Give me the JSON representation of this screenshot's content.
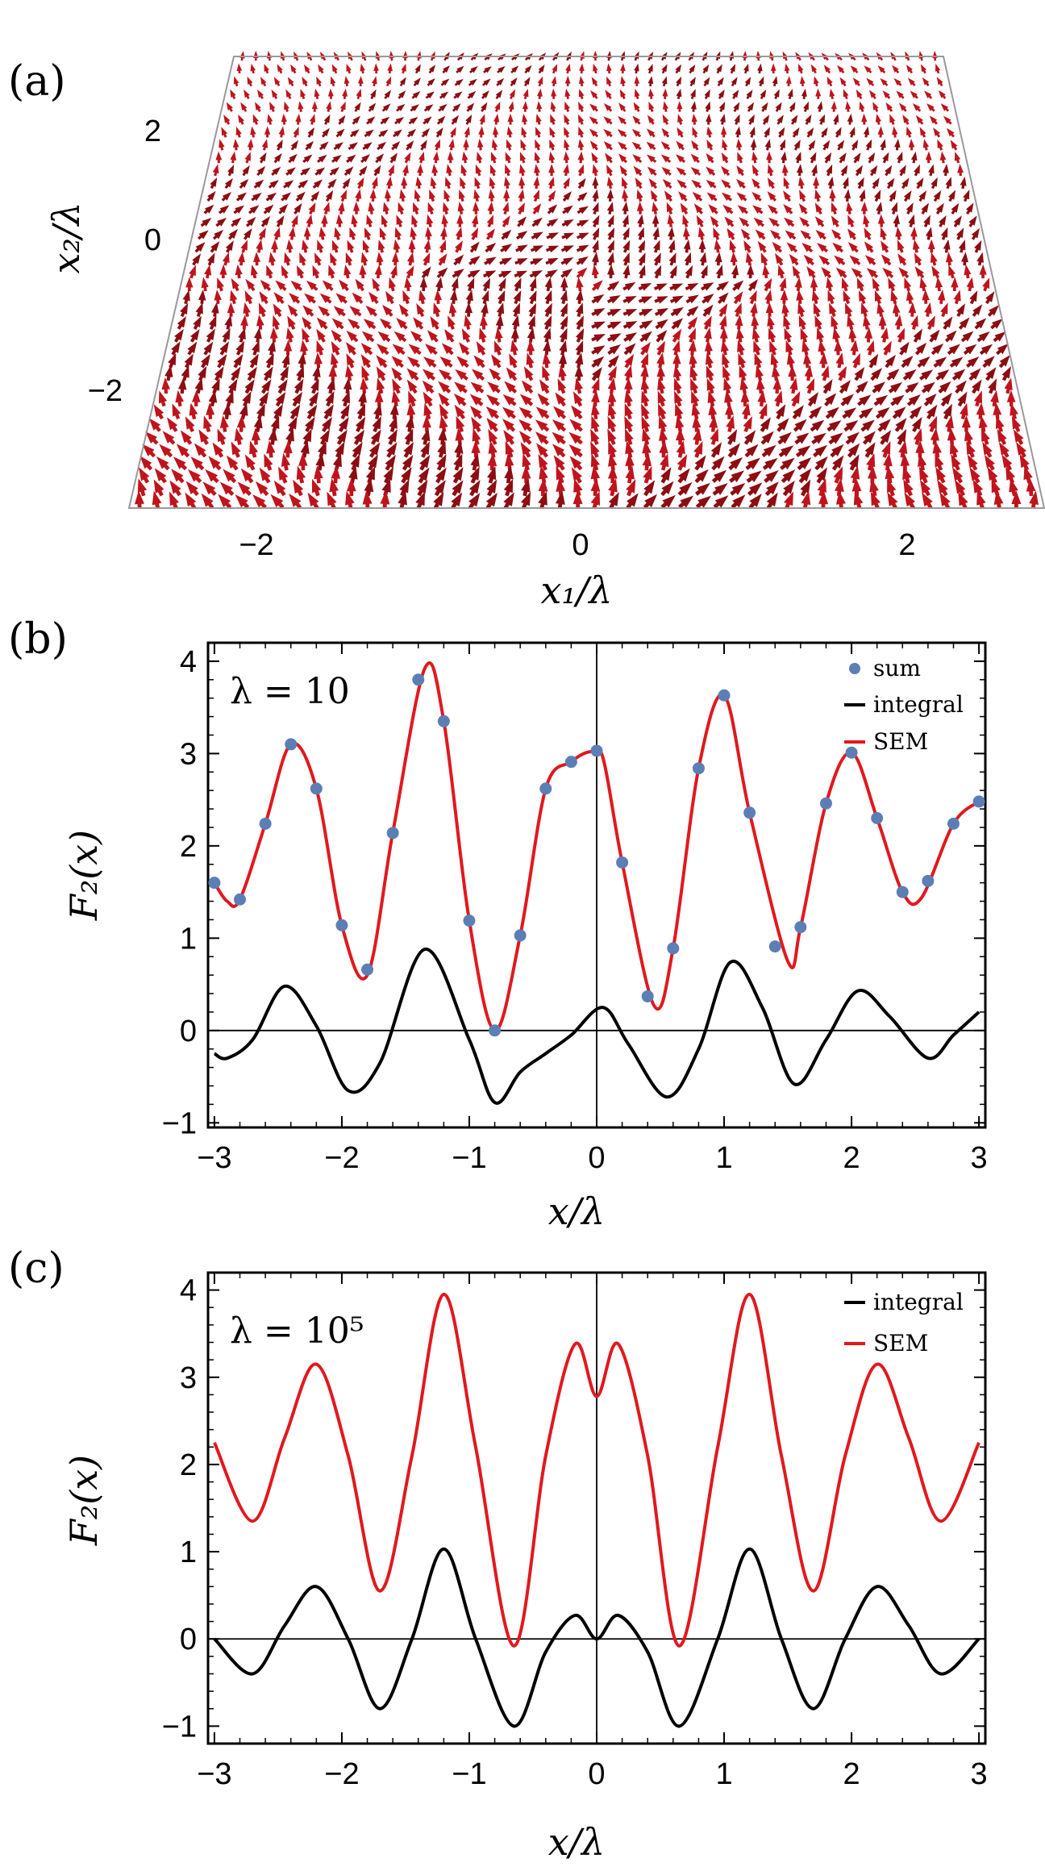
{
  "chart_data": [
    {
      "panel": "(a)",
      "type": "vector-field-3d",
      "xlabel": "x₁/λ",
      "ylabel": "x₂/λ",
      "xticks": [
        "−2",
        "0",
        "2"
      ],
      "yticks": [
        "2",
        "0",
        "−2"
      ],
      "xlim": [
        -3,
        3
      ],
      "ylim": [
        -3,
        3
      ],
      "arrow_color": "#c0141c"
    },
    {
      "panel": "(b)",
      "type": "line",
      "annotation": "λ = 10",
      "xlabel": "x/λ",
      "ylabel": "F₂(x)",
      "xlim": [
        -3.05,
        3.05
      ],
      "ylim": [
        -1.05,
        4.2
      ],
      "xticks": [
        "−3",
        "−2",
        "−1",
        "0",
        "1",
        "2",
        "3"
      ],
      "yticks": [
        "−1",
        "0",
        "1",
        "2",
        "3",
        "4"
      ],
      "legend": [
        "sum",
        "integral",
        "SEM"
      ],
      "series": [
        {
          "name": "sum",
          "kind": "scatter",
          "color": "#5b7fb5",
          "x": [
            -3.0,
            -2.8,
            -2.6,
            -2.4,
            -2.2,
            -2.0,
            -1.8,
            -1.6,
            -1.4,
            -1.2,
            -1.0,
            -0.8,
            -0.6,
            -0.4,
            -0.2,
            0.0,
            0.2,
            0.4,
            0.6,
            0.8,
            1.0,
            1.2,
            1.4,
            1.6,
            1.8,
            2.0,
            2.2,
            2.4,
            2.6,
            2.8,
            3.0
          ],
          "y": [
            1.6,
            1.42,
            2.24,
            3.1,
            2.62,
            1.14,
            0.66,
            2.14,
            3.8,
            3.35,
            1.19,
            0.0,
            1.03,
            2.62,
            2.91,
            3.03,
            1.82,
            0.37,
            0.89,
            2.84,
            3.63,
            2.36,
            0.91,
            1.12,
            2.46,
            3.01,
            2.3,
            1.5,
            1.62,
            2.24,
            2.48
          ]
        },
        {
          "name": "SEM",
          "kind": "line",
          "color": "#e0191e",
          "x": [
            -3.0,
            -2.9,
            -2.8,
            -2.6,
            -2.4,
            -2.2,
            -2.0,
            -1.8,
            -1.6,
            -1.35,
            -1.2,
            -1.0,
            -0.8,
            -0.6,
            -0.4,
            -0.2,
            -0.05,
            0.05,
            0.2,
            0.45,
            0.6,
            0.8,
            1.0,
            1.2,
            1.5,
            1.6,
            1.8,
            2.0,
            2.2,
            2.4,
            2.55,
            2.8,
            3.0
          ],
          "y": [
            1.6,
            1.4,
            1.42,
            2.24,
            3.1,
            2.62,
            1.14,
            0.6,
            2.14,
            3.92,
            3.35,
            1.19,
            0.0,
            1.03,
            2.62,
            2.91,
            3.02,
            2.95,
            1.82,
            0.27,
            0.89,
            2.84,
            3.63,
            2.36,
            0.75,
            1.12,
            2.46,
            3.01,
            2.3,
            1.5,
            1.44,
            2.24,
            2.48
          ]
        },
        {
          "name": "integral",
          "kind": "line",
          "color": "#000000",
          "x": [
            -3.0,
            -2.9,
            -2.7,
            -2.45,
            -2.2,
            -1.95,
            -1.7,
            -1.35,
            -1.0,
            -0.8,
            -0.6,
            -0.4,
            -0.2,
            0.05,
            0.25,
            0.55,
            0.8,
            1.05,
            1.3,
            1.55,
            1.8,
            2.05,
            2.3,
            2.6,
            2.8,
            3.0
          ],
          "y": [
            -0.25,
            -0.3,
            -0.1,
            0.48,
            0.05,
            -0.65,
            -0.35,
            0.88,
            -0.1,
            -0.78,
            -0.45,
            -0.25,
            -0.05,
            0.25,
            -0.15,
            -0.72,
            -0.2,
            0.74,
            0.25,
            -0.58,
            -0.1,
            0.43,
            0.15,
            -0.3,
            -0.05,
            0.2
          ]
        }
      ]
    },
    {
      "panel": "(c)",
      "type": "line",
      "annotation": "λ = 10⁵",
      "xlabel": "x/λ",
      "ylabel": "F₂(x)",
      "xlim": [
        -3.05,
        3.05
      ],
      "ylim": [
        -1.2,
        4.2
      ],
      "xticks": [
        "−3",
        "−2",
        "−1",
        "0",
        "1",
        "2",
        "3"
      ],
      "yticks": [
        "−1",
        "0",
        "1",
        "2",
        "3",
        "4"
      ],
      "legend": [
        "integral",
        "SEM"
      ],
      "series": [
        {
          "name": "SEM",
          "kind": "line",
          "color": "#e0191e",
          "x": [
            -3.0,
            -2.7,
            -2.45,
            -2.2,
            -1.95,
            -1.7,
            -1.45,
            -1.2,
            -0.95,
            -0.65,
            -0.4,
            -0.17,
            0.0,
            0.17,
            0.4,
            0.65,
            0.95,
            1.2,
            1.45,
            1.7,
            1.95,
            2.2,
            2.45,
            2.7,
            3.0
          ],
          "y": [
            2.25,
            1.35,
            2.3,
            3.15,
            2.1,
            0.55,
            2.1,
            3.95,
            2.2,
            -0.08,
            2.1,
            3.38,
            2.78,
            3.38,
            2.1,
            -0.08,
            2.2,
            3.95,
            2.1,
            0.55,
            2.1,
            3.15,
            2.3,
            1.35,
            2.25
          ]
        },
        {
          "name": "integral",
          "kind": "line",
          "color": "#000000",
          "x": [
            -3.0,
            -2.7,
            -2.45,
            -2.2,
            -1.95,
            -1.7,
            -1.45,
            -1.2,
            -0.95,
            -0.65,
            -0.4,
            -0.17,
            0.0,
            0.17,
            0.4,
            0.65,
            0.95,
            1.2,
            1.45,
            1.7,
            1.95,
            2.2,
            2.45,
            2.7,
            3.0
          ],
          "y": [
            0.0,
            -0.4,
            0.15,
            0.6,
            0.0,
            -0.8,
            0.0,
            1.03,
            0.0,
            -1.0,
            -0.15,
            0.27,
            0.0,
            0.27,
            -0.15,
            -1.0,
            0.0,
            1.03,
            0.0,
            -0.8,
            0.0,
            0.6,
            0.15,
            -0.4,
            0.0
          ]
        }
      ]
    }
  ]
}
